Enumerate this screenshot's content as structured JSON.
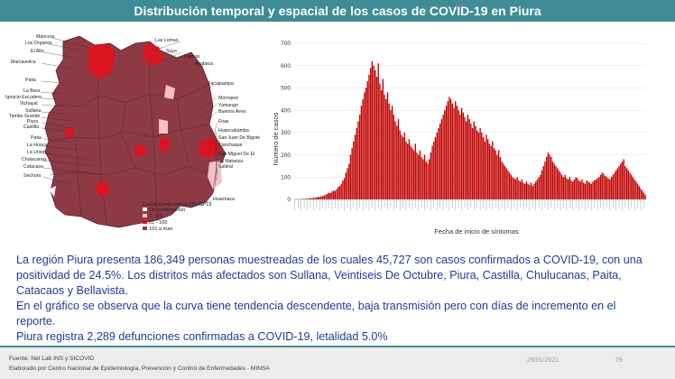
{
  "header": {
    "title": "Distribución temporal y espacial de los casos de COVID-19 en Piura"
  },
  "map": {
    "labels_left": [
      "Mancora",
      "Los Organos",
      "El Alto",
      "Marcavelica",
      "Paita",
      "La Brea",
      "Ignacio Escudero",
      "Vichayal",
      "Sullana",
      "Tambo Grande",
      "Piura",
      "Castilla",
      "Paita",
      "La Huaca",
      "La Union",
      "Chulucanas",
      "Catacaos",
      "Sechura"
    ],
    "labels_right": [
      "Las Lomas",
      "Suyo",
      "Paimas",
      "Ayabaca",
      "Pacaipampa",
      "Morropon",
      "Yamango",
      "Buenos Aires",
      "Frias",
      "Huancabamba",
      "San Juan De Bigote",
      "Canchaque",
      "San Miguel De El",
      "La Matanza",
      "Salitral",
      "Huarmaca"
    ],
    "legend": {
      "title": "Casos Confirmados COVID-19",
      "subtitle": "Sin confirmacion",
      "items": [
        {
          "label": "1 - 50",
          "color": "#f5c0c8"
        },
        {
          "label": "51 - 100",
          "color": "#d9141e"
        },
        {
          "label": "101 a mas",
          "color": "#8d3a45"
        }
      ],
      "no_confirm_color": "#ffffff"
    }
  },
  "chart_data": {
    "type": "bar",
    "title": "",
    "xlabel": "Fecha de inicio de síntomas",
    "ylabel": "Número de casos",
    "ylim": [
      0,
      700
    ],
    "yticks": [
      0,
      100,
      200,
      300,
      400,
      500,
      600,
      700
    ],
    "bar_color": "#c00000",
    "series": [
      {
        "values": [
          1,
          1,
          2,
          1,
          2,
          3,
          2,
          4,
          3,
          5,
          6,
          5,
          8,
          7,
          9,
          12,
          10,
          15,
          14,
          18,
          22,
          25,
          30,
          28,
          35,
          40,
          38,
          45,
          55,
          60,
          70,
          85,
          95,
          120,
          140,
          160,
          200,
          230,
          260,
          290,
          320,
          350,
          380,
          420,
          450,
          480,
          500,
          530,
          560,
          590,
          620,
          600,
          580,
          550,
          610,
          520,
          490,
          540,
          470,
          450,
          480,
          430,
          400,
          420,
          380,
          350,
          330,
          360,
          310,
          290,
          280,
          300,
          260,
          250,
          270,
          240,
          230,
          220,
          250,
          210,
          200,
          220,
          190,
          180,
          200,
          170,
          160,
          180,
          210,
          240,
          260,
          280,
          300,
          320,
          340,
          360,
          380,
          400,
          420,
          440,
          460,
          450,
          430,
          410,
          440,
          420,
          400,
          380,
          410,
          390,
          370,
          350,
          380,
          360,
          340,
          320,
          350,
          330,
          310,
          300,
          320,
          300,
          280,
          260,
          290,
          270,
          250,
          240,
          260,
          230,
          220,
          200,
          220,
          190,
          170,
          160,
          150,
          140,
          130,
          120,
          110,
          100,
          95,
          90,
          100,
          85,
          80,
          90,
          75,
          70,
          80,
          70,
          65,
          75,
          60,
          70,
          80,
          90,
          100,
          110,
          130,
          150,
          170,
          190,
          210,
          200,
          190,
          170,
          160,
          150,
          140,
          130,
          120,
          110,
          100,
          110,
          95,
          90,
          100,
          85,
          80,
          90,
          100,
          95,
          85,
          80,
          90,
          75,
          70,
          85,
          80,
          75,
          70,
          80,
          85,
          90,
          95,
          100,
          110,
          120,
          115,
          105,
          100,
          95,
          90,
          100,
          110,
          120,
          130,
          140,
          150,
          160,
          170,
          180,
          150,
          140,
          130,
          120,
          110,
          100,
          90,
          80,
          70,
          60,
          50,
          40,
          30,
          20
        ]
      }
    ]
  },
  "body": {
    "p1": "La región Piura presenta 186,349 personas muestreadas de los cuales 45,727 son casos confirmados a COVID-19, con una positividad de 24.5%. Los distritos más afectados son Sullana, Veintiseis De Octubre, Piura, Castilla, Chulucanas, Paita, Catacaos y Bellavista.",
    "p2": "En el gráfico se observa que la curva tiene tendencia descendente, baja transmisión pero con días de incremento en el reporte.",
    "p3": "Piura registra 2,289 defunciones confirmadas a COVID-19, letalidad 5.0%"
  },
  "footer": {
    "source": "Fuente: Net Lab INS y SICOVID",
    "producer": "Elaborado por Centro Nacional de Epidemiología, Prevención y Control de Enfermedades - MINSA",
    "date": "26/01/2021",
    "page": "79"
  }
}
